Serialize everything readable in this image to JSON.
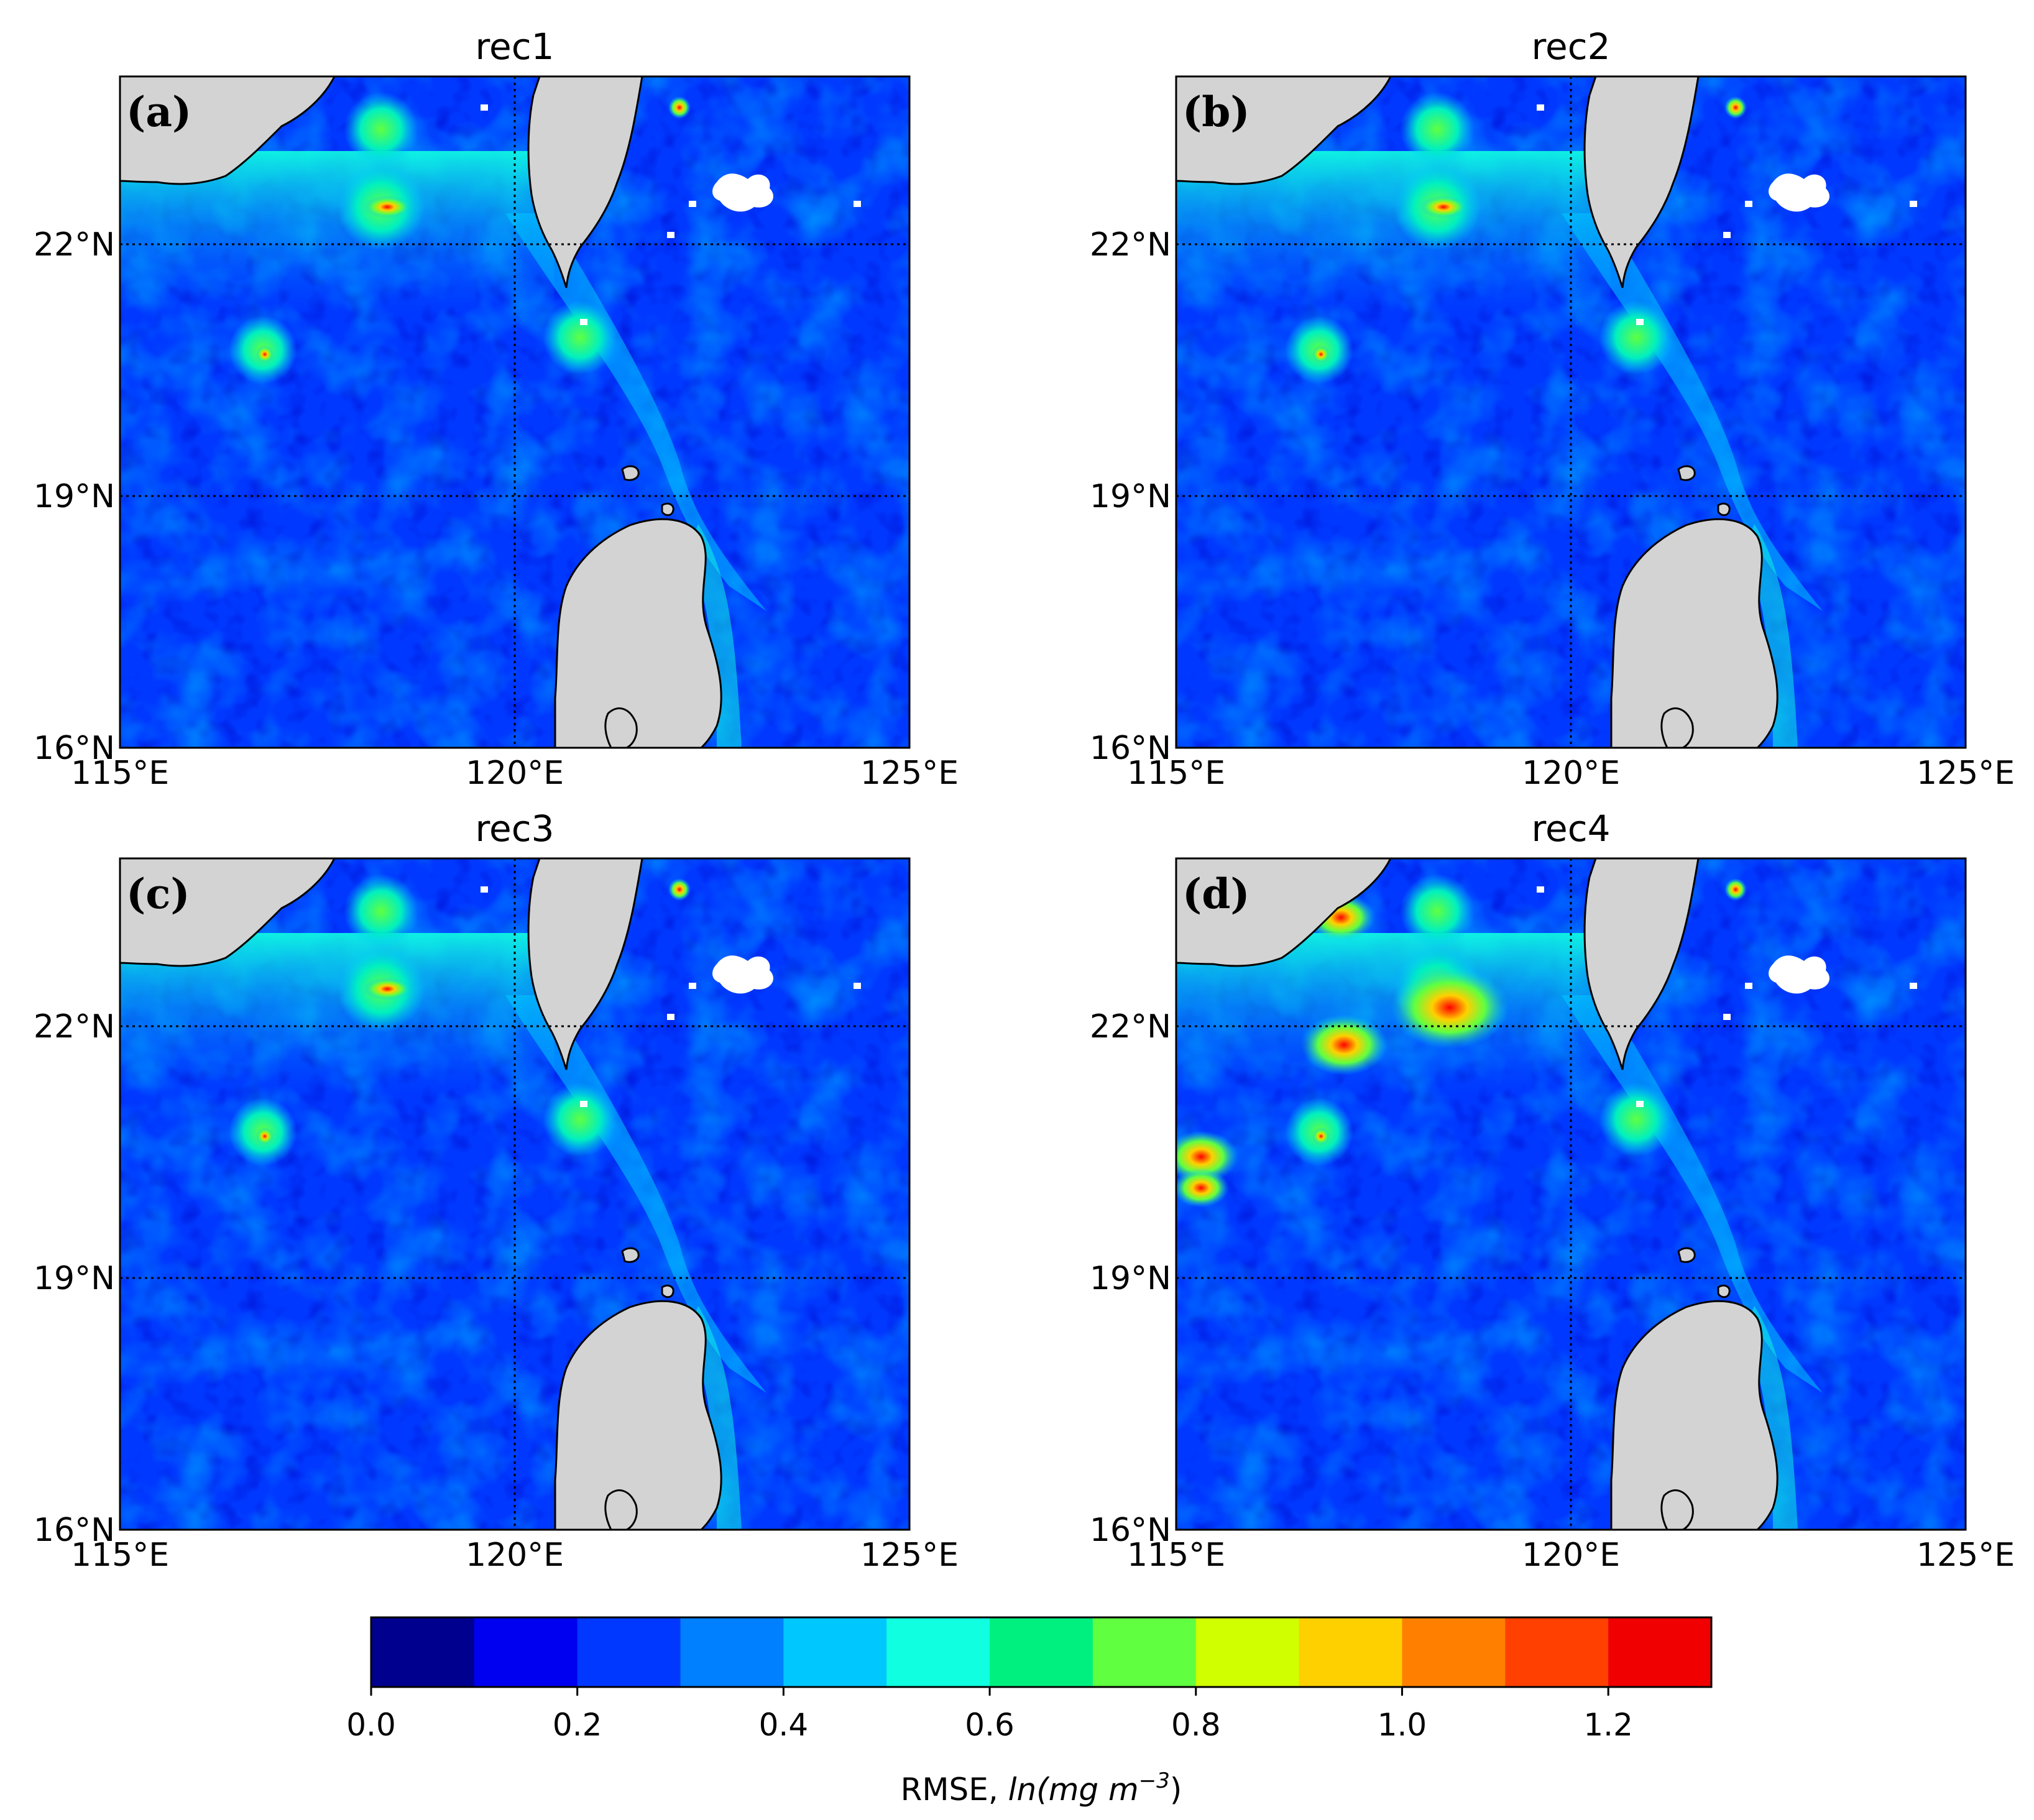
{
  "panels": [
    {
      "title": "rec1",
      "letter": "(a)"
    },
    {
      "title": "rec2",
      "letter": "(b)"
    },
    {
      "title": "rec3",
      "letter": "(c)"
    },
    {
      "title": "rec4",
      "letter": "(d)"
    }
  ],
  "axes": {
    "lon_ticks": [
      "115°E",
      "120°E",
      "125°E"
    ],
    "lat_ticks": [
      "22°N",
      "19°N",
      "16°N"
    ],
    "lon_range": [
      115,
      125
    ],
    "lat_range": [
      16,
      24
    ],
    "gridlines": "dotted"
  },
  "colorbar": {
    "levels": [
      0.0,
      0.1,
      0.2,
      0.3,
      0.4,
      0.5,
      0.6,
      0.7,
      0.8,
      0.9,
      1.0,
      1.1,
      1.2,
      1.3
    ],
    "colors": [
      "#00008f",
      "#0000f0",
      "#0038ff",
      "#0080ff",
      "#00c8ff",
      "#10ffe0",
      "#00f080",
      "#60ff40",
      "#d0ff00",
      "#ffd000",
      "#ff8000",
      "#ff4000",
      "#f00000"
    ],
    "tick_labels": [
      "0.0",
      "0.2",
      "0.4",
      "0.6",
      "0.8",
      "1.0",
      "1.2"
    ],
    "label_main": "RMSE, ",
    "label_unit_a": "ln(mg m",
    "label_sup": "−3",
    "label_unit_b": ")"
  },
  "land_color": "#d3d3d3"
}
